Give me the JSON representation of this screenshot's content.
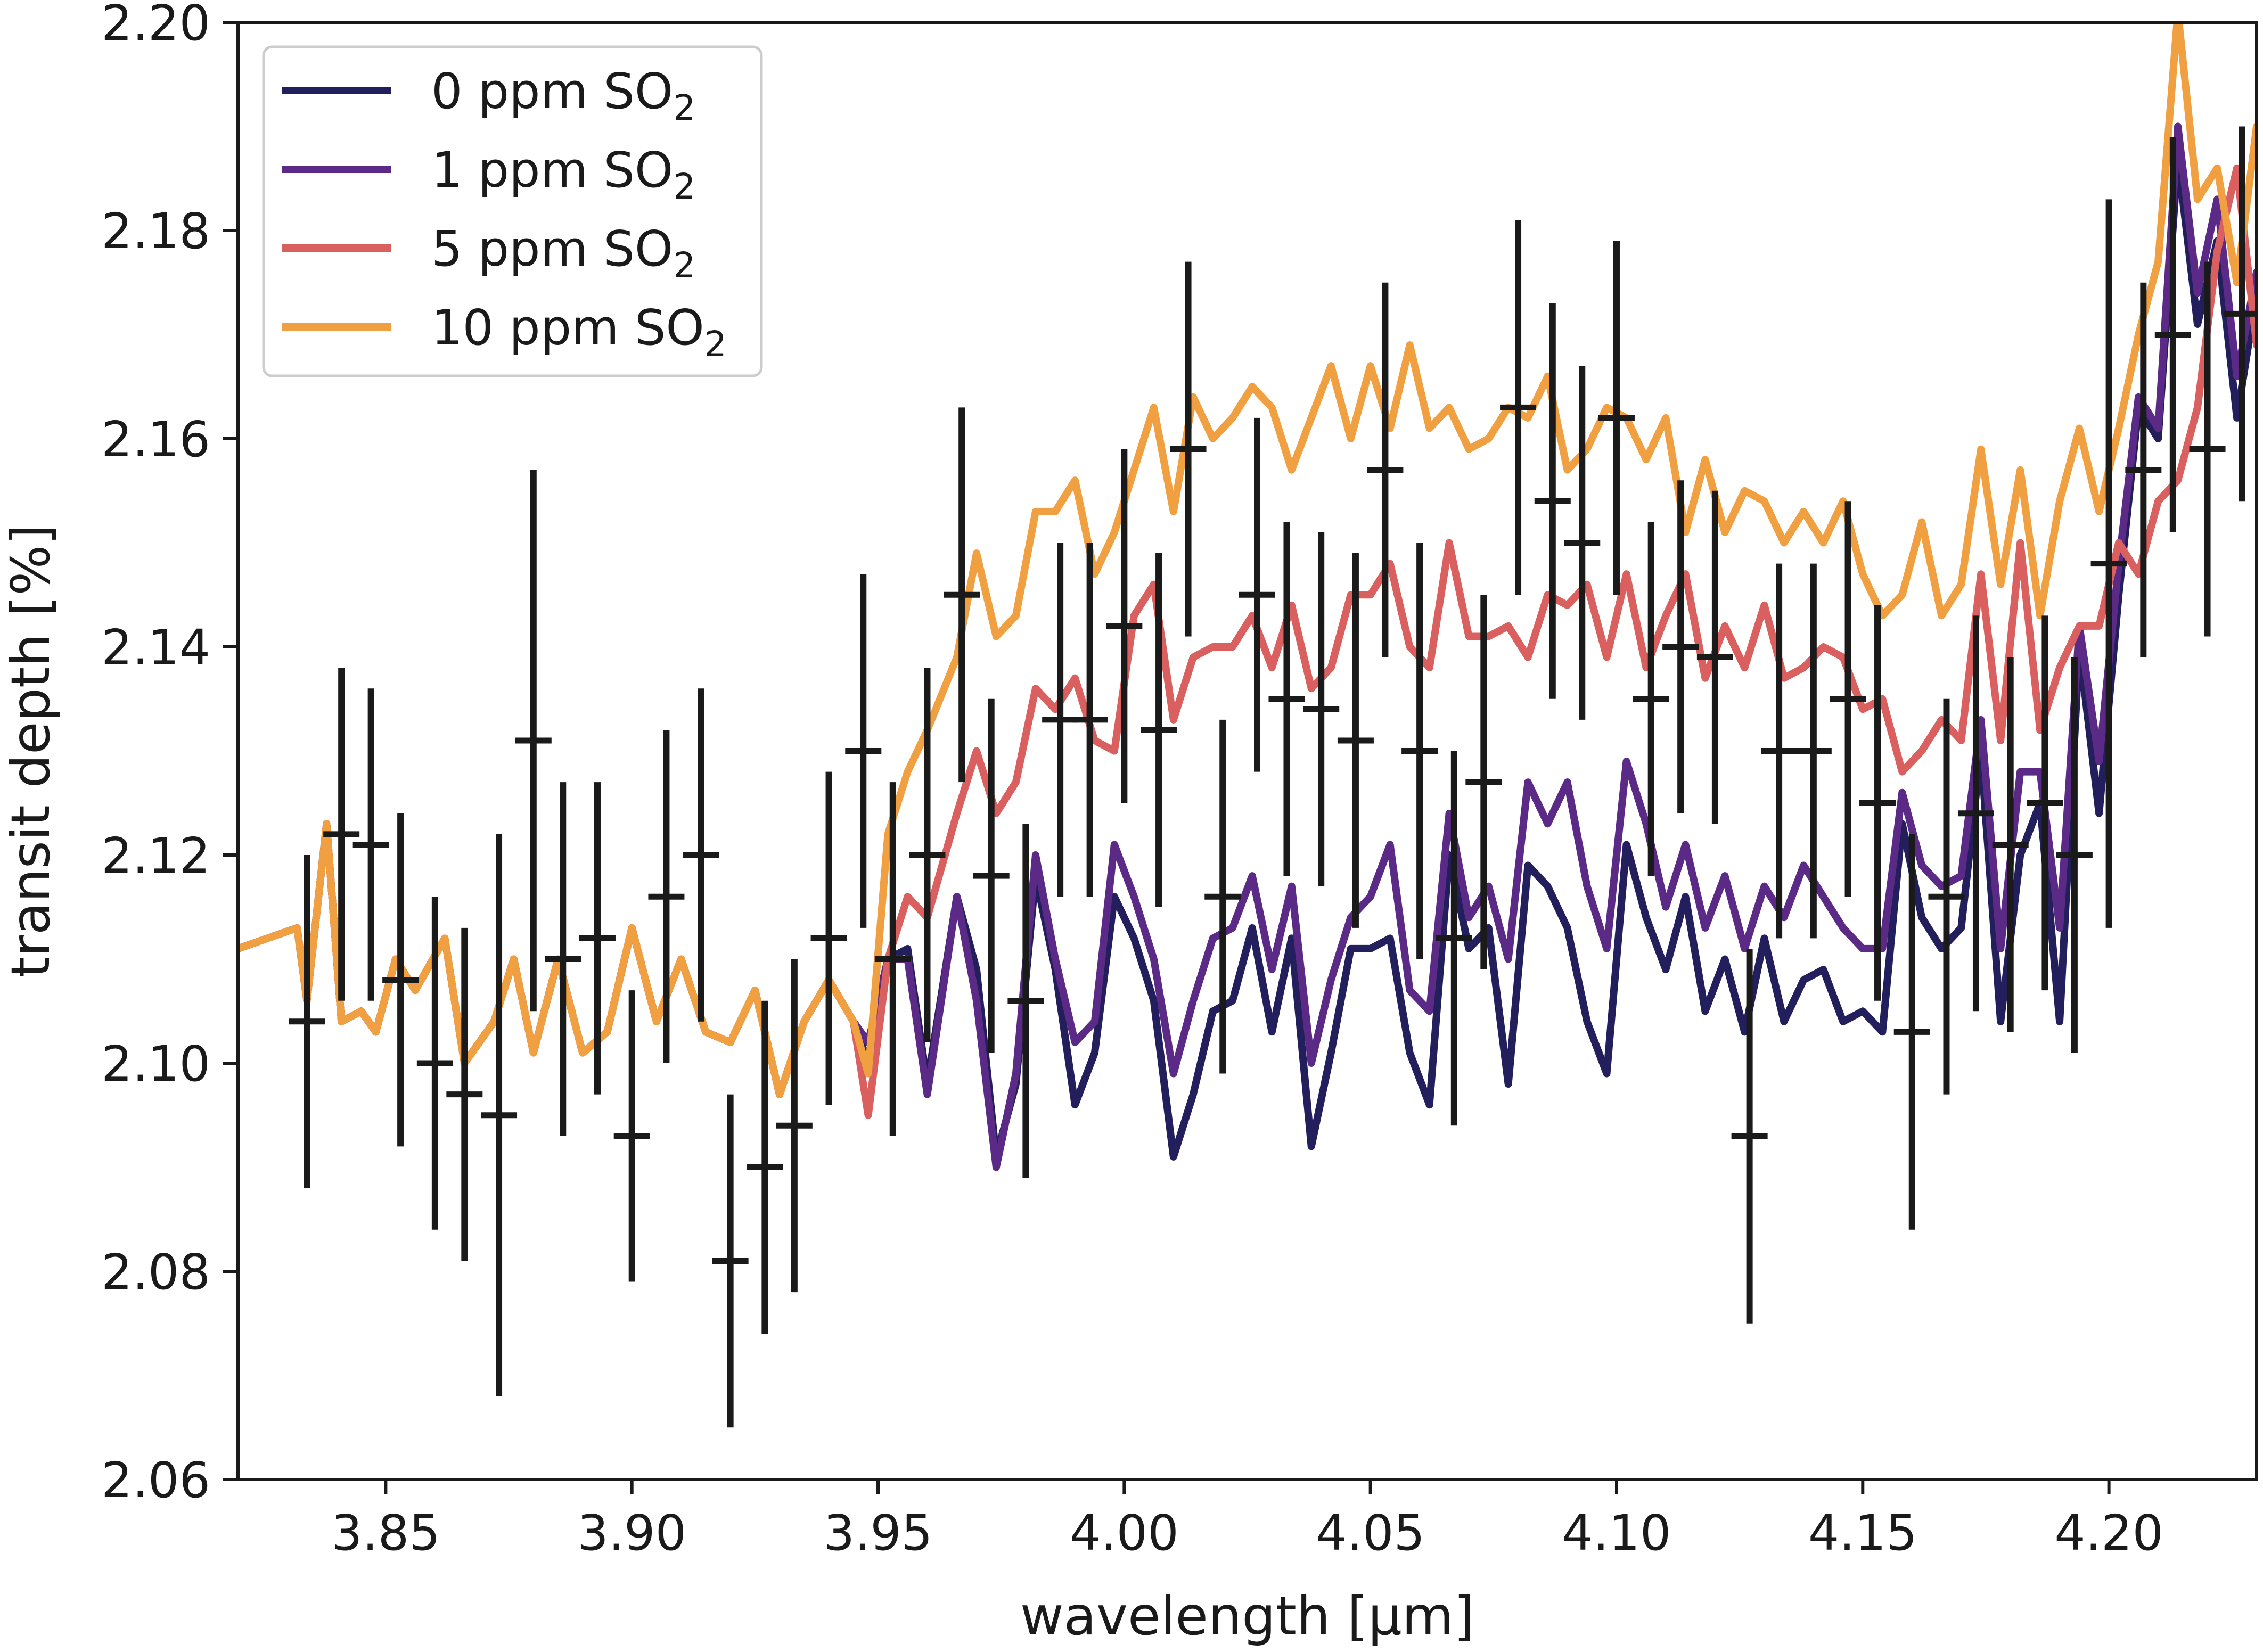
{
  "chart_data": {
    "type": "line",
    "xlabel": "wavelength [μm]",
    "ylabel": "transit depth [%]",
    "xlim": [
      3.82,
      4.23
    ],
    "ylim": [
      2.06,
      2.2
    ],
    "xticks": [
      3.85,
      3.9,
      3.95,
      4.0,
      4.05,
      4.1,
      4.15,
      4.2
    ],
    "yticks": [
      2.06,
      2.08,
      2.1,
      2.12,
      2.14,
      2.16,
      2.18,
      2.2
    ],
    "xtick_labels": [
      "3.85",
      "3.90",
      "3.95",
      "4.00",
      "4.05",
      "4.10",
      "4.15",
      "4.20"
    ],
    "ytick_labels": [
      "2.06",
      "2.08",
      "2.10",
      "2.12",
      "2.14",
      "2.16",
      "2.18",
      "2.20"
    ],
    "legend_position": "top-left",
    "grid": false,
    "legend": [
      {
        "text": "0 ppm SO",
        "sub": "2",
        "color": "#221f5c"
      },
      {
        "text": "1 ppm SO",
        "sub": "2",
        "color": "#5b2a86"
      },
      {
        "text": "5 ppm SO",
        "sub": "2",
        "color": "#d9605f"
      },
      {
        "text": "10 ppm SO",
        "sub": "2",
        "color": "#f0a040"
      }
    ],
    "series": [
      {
        "name": "0 ppm SO2",
        "color": "#221f5c",
        "x": [
          3.82,
          3.826,
          3.832,
          3.834,
          3.838,
          3.841,
          3.845,
          3.848,
          3.852,
          3.856,
          3.862,
          3.866,
          3.872,
          3.876,
          3.88,
          3.885,
          3.89,
          3.895,
          3.9,
          3.905,
          3.91,
          3.915,
          3.92,
          3.925,
          3.93,
          3.935,
          3.94,
          3.945,
          3.948,
          3.952,
          3.956,
          3.96,
          3.966,
          3.97,
          3.974,
          3.978,
          3.982,
          3.986,
          3.99,
          3.994,
          3.998,
          4.002,
          4.006,
          4.01,
          4.014,
          4.018,
          4.022,
          4.026,
          4.03,
          4.034,
          4.038,
          4.042,
          4.046,
          4.05,
          4.054,
          4.058,
          4.062,
          4.066,
          4.07,
          4.074,
          4.078,
          4.082,
          4.086,
          4.09,
          4.094,
          4.098,
          4.102,
          4.106,
          4.11,
          4.114,
          4.118,
          4.122,
          4.126,
          4.13,
          4.134,
          4.138,
          4.142,
          4.146,
          4.15,
          4.154,
          4.158,
          4.162,
          4.166,
          4.17,
          4.174,
          4.178,
          4.182,
          4.186,
          4.19,
          4.194,
          4.198,
          4.202,
          4.206,
          4.21,
          4.214,
          4.218,
          4.222,
          4.226,
          4.23
        ],
        "values": [
          2.111,
          2.112,
          2.113,
          2.106,
          2.123,
          2.104,
          2.105,
          2.103,
          2.11,
          2.107,
          2.112,
          2.1,
          2.104,
          2.11,
          2.101,
          2.11,
          2.101,
          2.103,
          2.113,
          2.104,
          2.11,
          2.103,
          2.102,
          2.107,
          2.097,
          2.104,
          2.108,
          2.104,
          2.1,
          2.11,
          2.111,
          2.098,
          2.116,
          2.109,
          2.091,
          2.098,
          2.118,
          2.109,
          2.096,
          2.101,
          2.116,
          2.112,
          2.106,
          2.091,
          2.097,
          2.105,
          2.106,
          2.113,
          2.103,
          2.112,
          2.092,
          2.101,
          2.111,
          2.111,
          2.112,
          2.101,
          2.096,
          2.12,
          2.111,
          2.113,
          2.098,
          2.119,
          2.117,
          2.113,
          2.104,
          2.099,
          2.121,
          2.114,
          2.109,
          2.116,
          2.105,
          2.11,
          2.103,
          2.112,
          2.104,
          2.108,
          2.109,
          2.104,
          2.105,
          2.103,
          2.123,
          2.114,
          2.111,
          2.113,
          2.13,
          2.104,
          2.12,
          2.125,
          2.104,
          2.14,
          2.124,
          2.145,
          2.163,
          2.16,
          2.187,
          2.171,
          2.179,
          2.162,
          2.174
        ]
      },
      {
        "name": "1 ppm SO2",
        "color": "#5b2a86",
        "x": [
          3.82,
          3.826,
          3.832,
          3.834,
          3.838,
          3.841,
          3.845,
          3.848,
          3.852,
          3.856,
          3.862,
          3.866,
          3.872,
          3.876,
          3.88,
          3.885,
          3.89,
          3.895,
          3.9,
          3.905,
          3.91,
          3.915,
          3.92,
          3.925,
          3.93,
          3.935,
          3.94,
          3.945,
          3.948,
          3.952,
          3.956,
          3.96,
          3.966,
          3.97,
          3.974,
          3.978,
          3.982,
          3.986,
          3.99,
          3.994,
          3.998,
          4.002,
          4.006,
          4.01,
          4.014,
          4.018,
          4.022,
          4.026,
          4.03,
          4.034,
          4.038,
          4.042,
          4.046,
          4.05,
          4.054,
          4.058,
          4.062,
          4.066,
          4.07,
          4.074,
          4.078,
          4.082,
          4.086,
          4.09,
          4.094,
          4.098,
          4.102,
          4.106,
          4.11,
          4.114,
          4.118,
          4.122,
          4.126,
          4.13,
          4.134,
          4.138,
          4.142,
          4.146,
          4.15,
          4.154,
          4.158,
          4.162,
          4.166,
          4.17,
          4.174,
          4.178,
          4.182,
          4.186,
          4.19,
          4.194,
          4.198,
          4.202,
          4.206,
          4.21,
          4.214,
          4.218,
          4.222,
          4.226,
          4.23
        ],
        "values": [
          2.111,
          2.112,
          2.113,
          2.106,
          2.123,
          2.104,
          2.105,
          2.103,
          2.11,
          2.107,
          2.112,
          2.1,
          2.104,
          2.11,
          2.101,
          2.11,
          2.101,
          2.103,
          2.113,
          2.104,
          2.11,
          2.103,
          2.102,
          2.107,
          2.097,
          2.104,
          2.108,
          2.104,
          2.102,
          2.11,
          2.11,
          2.097,
          2.116,
          2.106,
          2.09,
          2.099,
          2.12,
          2.11,
          2.102,
          2.104,
          2.121,
          2.116,
          2.11,
          2.099,
          2.106,
          2.112,
          2.113,
          2.118,
          2.109,
          2.117,
          2.1,
          2.108,
          2.114,
          2.116,
          2.121,
          2.107,
          2.105,
          2.124,
          2.114,
          2.117,
          2.11,
          2.127,
          2.123,
          2.127,
          2.117,
          2.111,
          2.129,
          2.123,
          2.115,
          2.121,
          2.113,
          2.118,
          2.111,
          2.117,
          2.114,
          2.119,
          2.116,
          2.113,
          2.111,
          2.111,
          2.126,
          2.119,
          2.117,
          2.118,
          2.133,
          2.111,
          2.128,
          2.128,
          2.113,
          2.142,
          2.129,
          2.148,
          2.164,
          2.161,
          2.19,
          2.174,
          2.183,
          2.166,
          2.176
        ]
      },
      {
        "name": "5 ppm SO2",
        "color": "#d9605f",
        "x": [
          3.82,
          3.826,
          3.832,
          3.834,
          3.838,
          3.841,
          3.845,
          3.848,
          3.852,
          3.856,
          3.862,
          3.866,
          3.872,
          3.876,
          3.88,
          3.885,
          3.89,
          3.895,
          3.9,
          3.905,
          3.91,
          3.915,
          3.92,
          3.925,
          3.93,
          3.935,
          3.94,
          3.945,
          3.948,
          3.952,
          3.956,
          3.96,
          3.966,
          3.97,
          3.974,
          3.978,
          3.982,
          3.986,
          3.99,
          3.994,
          3.998,
          4.002,
          4.006,
          4.01,
          4.014,
          4.018,
          4.022,
          4.026,
          4.03,
          4.034,
          4.038,
          4.042,
          4.046,
          4.05,
          4.054,
          4.058,
          4.062,
          4.066,
          4.07,
          4.074,
          4.078,
          4.082,
          4.086,
          4.09,
          4.094,
          4.098,
          4.102,
          4.106,
          4.11,
          4.114,
          4.118,
          4.122,
          4.126,
          4.13,
          4.134,
          4.138,
          4.142,
          4.146,
          4.15,
          4.154,
          4.158,
          4.162,
          4.166,
          4.17,
          4.174,
          4.178,
          4.182,
          4.186,
          4.19,
          4.194,
          4.198,
          4.202,
          4.206,
          4.21,
          4.214,
          4.218,
          4.222,
          4.226,
          4.23
        ],
        "values": [
          2.111,
          2.112,
          2.113,
          2.106,
          2.123,
          2.104,
          2.105,
          2.103,
          2.11,
          2.107,
          2.112,
          2.1,
          2.104,
          2.11,
          2.101,
          2.11,
          2.101,
          2.103,
          2.113,
          2.104,
          2.11,
          2.103,
          2.102,
          2.107,
          2.097,
          2.104,
          2.108,
          2.104,
          2.095,
          2.11,
          2.116,
          2.114,
          2.124,
          2.13,
          2.124,
          2.127,
          2.136,
          2.134,
          2.137,
          2.131,
          2.13,
          2.143,
          2.146,
          2.133,
          2.139,
          2.14,
          2.14,
          2.143,
          2.138,
          2.144,
          2.136,
          2.138,
          2.145,
          2.145,
          2.148,
          2.14,
          2.138,
          2.15,
          2.141,
          2.141,
          2.142,
          2.139,
          2.145,
          2.144,
          2.146,
          2.139,
          2.147,
          2.138,
          2.143,
          2.147,
          2.137,
          2.142,
          2.138,
          2.144,
          2.137,
          2.138,
          2.14,
          2.139,
          2.134,
          2.135,
          2.128,
          2.13,
          2.133,
          2.131,
          2.147,
          2.131,
          2.15,
          2.132,
          2.138,
          2.142,
          2.142,
          2.15,
          2.147,
          2.154,
          2.156,
          2.163,
          2.178,
          2.186,
          2.169
        ]
      },
      {
        "name": "10 ppm SO2",
        "color": "#f0a040",
        "x": [
          3.82,
          3.826,
          3.832,
          3.834,
          3.838,
          3.841,
          3.845,
          3.848,
          3.852,
          3.856,
          3.862,
          3.866,
          3.872,
          3.876,
          3.88,
          3.885,
          3.89,
          3.895,
          3.9,
          3.905,
          3.91,
          3.915,
          3.92,
          3.925,
          3.93,
          3.935,
          3.94,
          3.945,
          3.948,
          3.952,
          3.956,
          3.96,
          3.966,
          3.97,
          3.974,
          3.978,
          3.982,
          3.986,
          3.99,
          3.994,
          3.998,
          4.002,
          4.006,
          4.01,
          4.014,
          4.018,
          4.022,
          4.026,
          4.03,
          4.034,
          4.038,
          4.042,
          4.046,
          4.05,
          4.054,
          4.058,
          4.062,
          4.066,
          4.07,
          4.074,
          4.078,
          4.082,
          4.086,
          4.09,
          4.094,
          4.098,
          4.102,
          4.106,
          4.11,
          4.114,
          4.118,
          4.122,
          4.126,
          4.13,
          4.134,
          4.138,
          4.142,
          4.146,
          4.15,
          4.154,
          4.158,
          4.162,
          4.166,
          4.17,
          4.174,
          4.178,
          4.182,
          4.186,
          4.19,
          4.194,
          4.198,
          4.202,
          4.206,
          4.21,
          4.214,
          4.218,
          4.222,
          4.226,
          4.23
        ],
        "values": [
          2.111,
          2.112,
          2.113,
          2.106,
          2.123,
          2.104,
          2.105,
          2.103,
          2.11,
          2.107,
          2.112,
          2.1,
          2.104,
          2.11,
          2.101,
          2.11,
          2.101,
          2.103,
          2.113,
          2.104,
          2.11,
          2.103,
          2.102,
          2.107,
          2.097,
          2.104,
          2.108,
          2.104,
          2.099,
          2.122,
          2.128,
          2.132,
          2.139,
          2.149,
          2.141,
          2.143,
          2.153,
          2.153,
          2.156,
          2.147,
          2.151,
          2.157,
          2.163,
          2.153,
          2.164,
          2.16,
          2.162,
          2.165,
          2.163,
          2.157,
          2.162,
          2.167,
          2.16,
          2.167,
          2.161,
          2.169,
          2.161,
          2.163,
          2.159,
          2.16,
          2.163,
          2.162,
          2.166,
          2.157,
          2.159,
          2.163,
          2.162,
          2.158,
          2.162,
          2.151,
          2.158,
          2.151,
          2.155,
          2.154,
          2.15,
          2.153,
          2.15,
          2.154,
          2.147,
          2.143,
          2.145,
          2.152,
          2.143,
          2.146,
          2.159,
          2.146,
          2.157,
          2.143,
          2.154,
          2.161,
          2.153,
          2.161,
          2.17,
          2.177,
          2.201,
          2.183,
          2.186,
          2.175,
          2.19
        ]
      }
    ],
    "errorbars": {
      "color": "#1a1a1a",
      "x": [
        3.834,
        3.841,
        3.847,
        3.853,
        3.86,
        3.866,
        3.873,
        3.88,
        3.886,
        3.893,
        3.9,
        3.907,
        3.914,
        3.92,
        3.927,
        3.933,
        3.94,
        3.947,
        3.953,
        3.96,
        3.967,
        3.973,
        3.98,
        3.987,
        3.993,
        4.0,
        4.007,
        4.013,
        4.02,
        4.027,
        4.033,
        4.04,
        4.047,
        4.053,
        4.06,
        4.067,
        4.073,
        4.08,
        4.087,
        4.093,
        4.1,
        4.107,
        4.113,
        4.12,
        4.127,
        4.133,
        4.14,
        4.147,
        4.153,
        4.16,
        4.167,
        4.173,
        4.18,
        4.187,
        4.193,
        4.2,
        4.207,
        4.213,
        4.22,
        4.227
      ],
      "values": [
        2.104,
        2.122,
        2.121,
        2.108,
        2.1,
        2.097,
        2.095,
        2.131,
        2.11,
        2.112,
        2.093,
        2.116,
        2.12,
        2.081,
        2.09,
        2.094,
        2.112,
        2.13,
        2.11,
        2.12,
        2.145,
        2.118,
        2.106,
        2.133,
        2.133,
        2.142,
        2.132,
        2.159,
        2.116,
        2.145,
        2.135,
        2.134,
        2.131,
        2.157,
        2.13,
        2.112,
        2.127,
        2.163,
        2.154,
        2.15,
        2.162,
        2.135,
        2.14,
        2.139,
        2.093,
        2.13,
        2.13,
        2.135,
        2.125,
        2.103,
        2.116,
        2.124,
        2.121,
        2.125,
        2.12,
        2.148,
        2.157,
        2.17,
        2.159,
        2.172
      ],
      "errors": [
        0.016,
        0.016,
        0.015,
        0.016,
        0.016,
        0.016,
        0.027,
        0.026,
        0.017,
        0.015,
        0.014,
        0.016,
        0.016,
        0.016,
        0.016,
        0.016,
        0.016,
        0.017,
        0.017,
        0.018,
        0.018,
        0.017,
        0.017,
        0.017,
        0.017,
        0.017,
        0.017,
        0.018,
        0.017,
        0.017,
        0.017,
        0.017,
        0.018,
        0.018,
        0.02,
        0.018,
        0.018,
        0.018,
        0.019,
        0.017,
        0.017,
        0.017,
        0.016,
        0.016,
        0.018,
        0.018,
        0.018,
        0.019,
        0.019,
        0.019,
        0.019,
        0.019,
        0.018,
        0.018,
        0.019,
        0.035,
        0.018,
        0.019,
        0.018,
        0.018
      ]
    }
  }
}
